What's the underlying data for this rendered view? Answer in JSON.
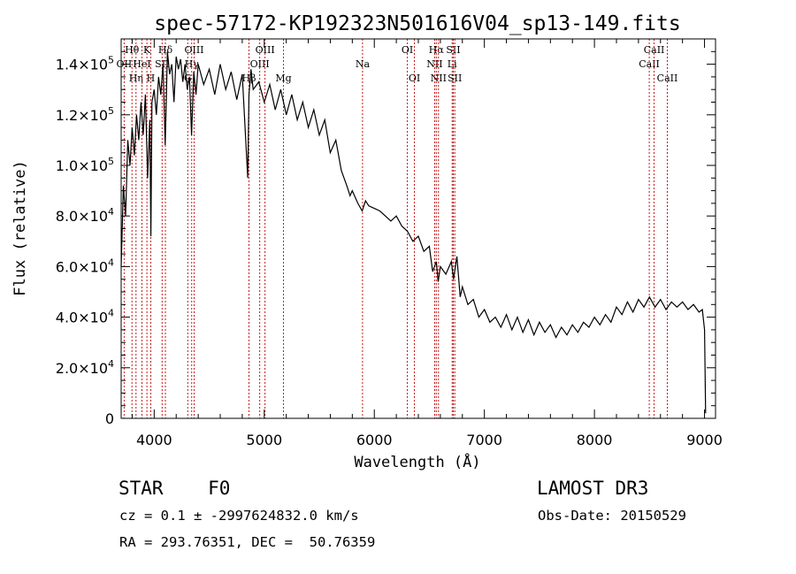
{
  "chart_data": {
    "type": "line",
    "title": "spec-57172-KP192323N501616V04_sp13-149.fits",
    "xlabel": "Wavelength (Å)",
    "ylabel": "Flux (relative)",
    "xlim": [
      3700,
      9100
    ],
    "ylim": [
      0,
      150000
    ],
    "x_ticks": [
      {
        "value": 4000,
        "label": "4000"
      },
      {
        "value": 5000,
        "label": "5000"
      },
      {
        "value": 6000,
        "label": "6000"
      },
      {
        "value": 7000,
        "label": "7000"
      },
      {
        "value": 8000,
        "label": "8000"
      },
      {
        "value": 9000,
        "label": "9000"
      }
    ],
    "y_ticks": [
      {
        "value": 0,
        "mant": "0",
        "exp": ""
      },
      {
        "value": 20000,
        "mant": "2.0×10",
        "exp": "4"
      },
      {
        "value": 40000,
        "mant": "4.0×10",
        "exp": "4"
      },
      {
        "value": 60000,
        "mant": "6.0×10",
        "exp": "4"
      },
      {
        "value": 80000,
        "mant": "8.0×10",
        "exp": "4"
      },
      {
        "value": 100000,
        "mant": "1.0×10",
        "exp": "5"
      },
      {
        "value": 120000,
        "mant": "1.2×10",
        "exp": "5"
      },
      {
        "value": 140000,
        "mant": "1.4×10",
        "exp": "5"
      }
    ],
    "series": [
      {
        "name": "flux",
        "x": [
          3700,
          3720,
          3740,
          3760,
          3780,
          3800,
          3820,
          3840,
          3860,
          3880,
          3900,
          3920,
          3940,
          3960,
          3970,
          3980,
          4000,
          4020,
          4040,
          4060,
          4080,
          4100,
          4120,
          4140,
          4160,
          4180,
          4200,
          4220,
          4240,
          4260,
          4280,
          4300,
          4320,
          4340,
          4360,
          4380,
          4400,
          4450,
          4500,
          4550,
          4600,
          4650,
          4700,
          4750,
          4800,
          4850,
          4861,
          4880,
          4900,
          4950,
          5000,
          5050,
          5100,
          5150,
          5200,
          5250,
          5300,
          5350,
          5400,
          5450,
          5500,
          5550,
          5600,
          5650,
          5700,
          5750,
          5780,
          5800,
          5850,
          5890,
          5920,
          5950,
          6000,
          6050,
          6100,
          6150,
          6200,
          6250,
          6300,
          6350,
          6400,
          6450,
          6500,
          6530,
          6563,
          6580,
          6600,
          6650,
          6700,
          6720,
          6750,
          6780,
          6800,
          6850,
          6900,
          6950,
          7000,
          7050,
          7100,
          7150,
          7200,
          7250,
          7300,
          7350,
          7400,
          7450,
          7500,
          7550,
          7600,
          7650,
          7700,
          7750,
          7800,
          7850,
          7900,
          7950,
          8000,
          8050,
          8100,
          8150,
          8200,
          8250,
          8300,
          8350,
          8400,
          8450,
          8500,
          8550,
          8600,
          8650,
          8700,
          8750,
          8800,
          8850,
          8900,
          8950,
          8980,
          9000,
          9010
        ],
        "y": [
          60000,
          92000,
          80000,
          110000,
          100000,
          115000,
          104000,
          120000,
          110000,
          125000,
          112000,
          128000,
          95000,
          118000,
          72000,
          125000,
          130000,
          120000,
          135000,
          128000,
          140000,
          108000,
          145000,
          136000,
          140000,
          125000,
          143000,
          138000,
          142000,
          133000,
          140000,
          130000,
          135000,
          112000,
          137000,
          128000,
          140000,
          132000,
          138000,
          128000,
          140000,
          130000,
          137000,
          126000,
          136000,
          95000,
          128000,
          138000,
          130000,
          133000,
          125000,
          132000,
          122000,
          130000,
          120000,
          128000,
          118000,
          125000,
          115000,
          122000,
          112000,
          118000,
          105000,
          110000,
          98000,
          92000,
          88000,
          90000,
          85000,
          82000,
          86000,
          84000,
          83000,
          82000,
          80000,
          78000,
          80000,
          76000,
          74000,
          70000,
          72000,
          66000,
          68000,
          58000,
          62000,
          54000,
          60000,
          57000,
          62000,
          55000,
          64000,
          48000,
          52000,
          45000,
          47000,
          40000,
          43000,
          38000,
          40000,
          36000,
          41000,
          35000,
          40000,
          34000,
          39000,
          33000,
          38000,
          34000,
          37000,
          32000,
          36000,
          33000,
          37000,
          34000,
          38000,
          36000,
          40000,
          37000,
          41000,
          38000,
          44000,
          41000,
          46000,
          42000,
          47000,
          44000,
          48000,
          44000,
          47000,
          43000,
          46000,
          44000,
          46000,
          43000,
          45000,
          42000,
          43000,
          35000,
          2000
        ]
      }
    ],
    "line_marks": [
      {
        "wl": 3727,
        "labels": [
          "OII"
        ],
        "rows": [
          1
        ]
      },
      {
        "wl": 3798,
        "labels": [
          "Hθ"
        ],
        "rows": [
          0
        ]
      },
      {
        "wl": 3835,
        "labels": [
          "Hη"
        ],
        "rows": [
          2
        ]
      },
      {
        "wl": 3889,
        "labels": [
          "HeI"
        ],
        "rows": [
          1
        ]
      },
      {
        "wl": 3934,
        "labels": [
          "K"
        ],
        "rows": [
          0
        ]
      },
      {
        "wl": 3969,
        "labels": [
          "H"
        ],
        "rows": [
          2
        ]
      },
      {
        "wl": 4072,
        "labels": [
          "SII"
        ],
        "rows": [
          1
        ]
      },
      {
        "wl": 4102,
        "labels": [
          "Hδ"
        ],
        "rows": [
          0
        ]
      },
      {
        "wl": 4305,
        "labels": [
          "G"
        ],
        "rows": [
          2
        ]
      },
      {
        "wl": 4341,
        "labels": [
          "Hγ"
        ],
        "rows": [
          1
        ]
      },
      {
        "wl": 4363,
        "labels": [
          "OIII"
        ],
        "rows": [
          0
        ]
      },
      {
        "wl": 4861,
        "labels": [
          "Hβ"
        ],
        "rows": [
          2
        ]
      },
      {
        "wl": 4959,
        "labels": [
          "OIII"
        ],
        "rows": [
          1
        ]
      },
      {
        "wl": 5007,
        "labels": [
          "OIII"
        ],
        "rows": [
          0
        ]
      },
      {
        "wl": 5175,
        "labels": [
          "Mg"
        ],
        "rows": [
          2
        ]
      },
      {
        "wl": 5893,
        "labels": [
          "Na"
        ],
        "rows": [
          1
        ]
      },
      {
        "wl": 6300,
        "labels": [
          "OI"
        ],
        "rows": [
          0
        ]
      },
      {
        "wl": 6364,
        "labels": [
          "OI"
        ],
        "rows": [
          2
        ]
      },
      {
        "wl": 6548,
        "labels": [
          "NII"
        ],
        "rows": [
          1
        ]
      },
      {
        "wl": 6563,
        "labels": [
          "Hα"
        ],
        "rows": [
          0
        ]
      },
      {
        "wl": 6583,
        "labels": [
          "NII"
        ],
        "rows": [
          2
        ]
      },
      {
        "wl": 6707,
        "labels": [
          "Li"
        ],
        "rows": [
          1
        ]
      },
      {
        "wl": 6717,
        "labels": [
          "SII"
        ],
        "rows": [
          0
        ]
      },
      {
        "wl": 6731,
        "labels": [
          "SII"
        ],
        "rows": [
          2
        ]
      },
      {
        "wl": 8498,
        "labels": [
          "CaII"
        ],
        "rows": [
          1
        ]
      },
      {
        "wl": 8542,
        "labels": [
          "CaII"
        ],
        "rows": [
          0
        ]
      },
      {
        "wl": 8662,
        "labels": [
          "CaII"
        ],
        "rows": [
          2
        ]
      }
    ]
  },
  "info": {
    "class_line": "STAR    F0",
    "survey": "LAMOST DR3",
    "cz_line": "cz = 0.1 ± -2997624832.0 km/s",
    "obs_date": "Obs-Date: 20150529",
    "radec_line": "RA = 293.76351, DEC =  50.76359"
  }
}
